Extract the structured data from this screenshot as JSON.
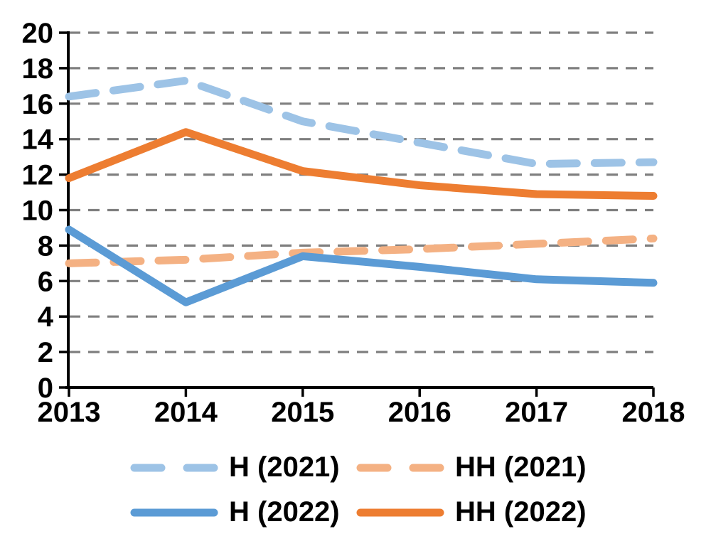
{
  "colors": {
    "background": "#FFFFFF",
    "axis": "#000000",
    "grid": "#7F7F7F",
    "text": "#000000"
  },
  "chart_data": {
    "type": "line",
    "categories": [
      "2013",
      "2014",
      "2015",
      "2016",
      "2017",
      "2018"
    ],
    "series": [
      {
        "name": "H (2021)",
        "style": "dashed",
        "color": "#9DC3E6",
        "values": [
          16.4,
          17.3,
          15.0,
          13.8,
          12.6,
          12.7
        ]
      },
      {
        "name": "HH (2021)",
        "style": "dashed",
        "color": "#F4B183",
        "values": [
          7.0,
          7.2,
          7.6,
          7.8,
          8.1,
          8.4
        ]
      },
      {
        "name": "H (2022)",
        "style": "solid",
        "color": "#5B9BD5",
        "values": [
          8.9,
          4.8,
          7.4,
          6.8,
          6.1,
          5.9
        ]
      },
      {
        "name": "HH (2022)",
        "style": "solid",
        "color": "#ED7D31",
        "values": [
          11.8,
          14.4,
          12.2,
          11.4,
          10.9,
          10.8
        ]
      }
    ],
    "title": "",
    "xlabel": "",
    "ylabel": "",
    "ylim": [
      0,
      20
    ],
    "y_ticks": [
      0,
      2,
      4,
      6,
      8,
      10,
      12,
      14,
      16,
      18,
      20
    ],
    "grid": "horizontal dashed",
    "legend_position": "bottom"
  }
}
